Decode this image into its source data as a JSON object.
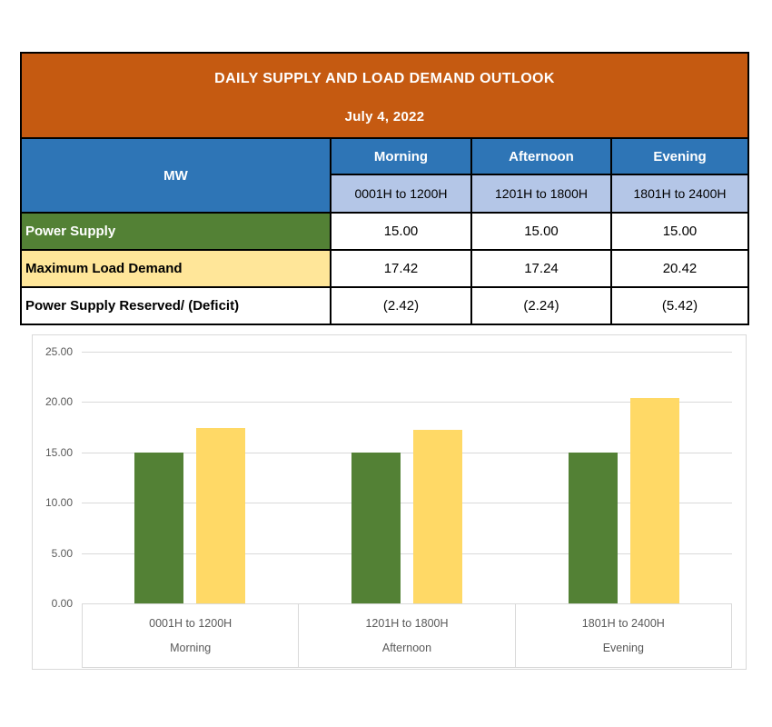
{
  "report": {
    "title": "DAILY SUPPLY AND LOAD DEMAND OUTLOOK",
    "date": "July 4, 2022"
  },
  "table": {
    "unit_label": "MW",
    "columns": [
      {
        "period": "Morning",
        "time": "0001H to 1200H"
      },
      {
        "period": "Afternoon",
        "time": "1201H to 1800H"
      },
      {
        "period": "Evening",
        "time": "1801H to 2400H"
      }
    ],
    "rows": [
      {
        "label": "Power Supply",
        "values": [
          "15.00",
          "15.00",
          "15.00"
        ]
      },
      {
        "label": "Maximum Load Demand",
        "values": [
          "17.42",
          "17.24",
          "20.42"
        ]
      },
      {
        "label": "Power Supply Reserved/ (Deficit)",
        "values": [
          "(2.42)",
          "(2.24)",
          "(5.42)"
        ]
      }
    ]
  },
  "chart_data": {
    "type": "bar",
    "categories": [
      "0001H to 1200H",
      "1201H to 1800H",
      "1801H to 2400H"
    ],
    "category_groups": [
      "Morning",
      "Afternoon",
      "Evening"
    ],
    "series": [
      {
        "name": "Power Supply",
        "color": "#538135",
        "values": [
          15.0,
          15.0,
          15.0
        ]
      },
      {
        "name": "Maximum Load Demand",
        "color": "#FFD966",
        "values": [
          17.42,
          17.24,
          20.42
        ]
      }
    ],
    "ylim": [
      0,
      25
    ],
    "ytick_labels": [
      "25.00",
      "20.00",
      "15.00",
      "10.00",
      "5.00",
      "0.00"
    ],
    "grid": true,
    "legend": "none"
  },
  "colors": {
    "header_bg": "#C55A11",
    "period_header_bg": "#2E75B6",
    "time_header_bg": "#B4C6E7",
    "power_supply_row_bg": "#538135",
    "max_load_row_bg": "#FFE699",
    "grid_line": "#D9D9D9",
    "axis_text": "#595959"
  }
}
